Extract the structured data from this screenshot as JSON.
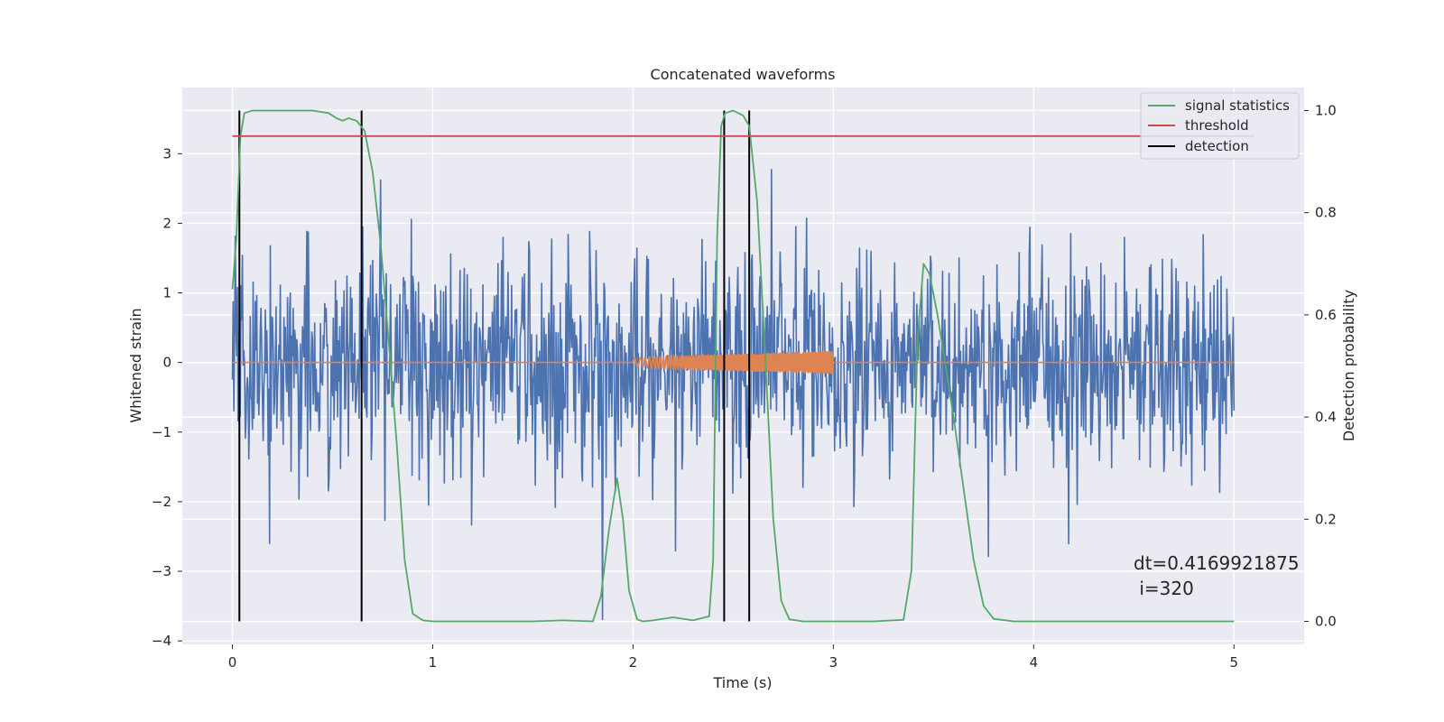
{
  "chart_data": {
    "type": "line",
    "title": "Concatenated waveforms",
    "xlabel": "Time (s)",
    "ylabel": "Whitened strain",
    "ylabel_right": "Detection probability",
    "xlim": [
      -0.25,
      5.35
    ],
    "ylim": [
      -4.05,
      3.95
    ],
    "ylim_right": [
      -0.045,
      1.045
    ],
    "x_ticks": [
      0,
      1,
      2,
      3,
      4,
      5
    ],
    "y_ticks": [
      -4,
      -3,
      -2,
      -1,
      0,
      1,
      2,
      3
    ],
    "y_ticks_right": [
      0.0,
      0.2,
      0.4,
      0.6,
      0.8,
      1.0
    ],
    "y_ticks_right_labels": [
      "0.0",
      "0.2",
      "0.4",
      "0.6",
      "0.8",
      "1.0"
    ],
    "grid": true,
    "legend_position": "top-right",
    "noise": {
      "color": "#4c72b0",
      "x_range": [
        0,
        5
      ],
      "samples": 1400,
      "sigma": 0.8,
      "seed": 7
    },
    "template": {
      "color": "#dd8452",
      "x_range": [
        2,
        3
      ],
      "amplitude_start": 0.07,
      "amplitude_end": 0.17
    },
    "series": [
      {
        "name": "signal statistics",
        "color": "#55a868",
        "axis": "right",
        "x": [
          0.0,
          0.02,
          0.04,
          0.06,
          0.1,
          0.2,
          0.3,
          0.4,
          0.48,
          0.52,
          0.55,
          0.58,
          0.62,
          0.66,
          0.7,
          0.74,
          0.78,
          0.82,
          0.86,
          0.9,
          0.95,
          1.0,
          1.2,
          1.5,
          1.65,
          1.8,
          1.84,
          1.88,
          1.92,
          1.95,
          1.98,
          2.02,
          2.05,
          2.1,
          2.2,
          2.3,
          2.38,
          2.4,
          2.42,
          2.44,
          2.46,
          2.5,
          2.55,
          2.58,
          2.62,
          2.66,
          2.7,
          2.74,
          2.78,
          2.85,
          3.0,
          3.2,
          3.35,
          3.39,
          3.42,
          3.45,
          3.48,
          3.52,
          3.56,
          3.6,
          3.65,
          3.7,
          3.75,
          3.8,
          3.9,
          4.0,
          4.5,
          5.0
        ],
        "y": [
          0.65,
          0.75,
          0.95,
          0.995,
          1.0,
          1.0,
          1.0,
          1.0,
          0.995,
          0.985,
          0.98,
          0.985,
          0.98,
          0.96,
          0.88,
          0.74,
          0.55,
          0.35,
          0.12,
          0.015,
          0.002,
          0.0,
          0.0,
          0.0,
          0.002,
          0.0,
          0.05,
          0.18,
          0.28,
          0.2,
          0.06,
          0.004,
          0.0,
          0.002,
          0.008,
          0.002,
          0.01,
          0.12,
          0.75,
          0.97,
          0.995,
          1.0,
          0.99,
          0.97,
          0.82,
          0.52,
          0.2,
          0.04,
          0.004,
          0.0,
          0.0,
          0.0,
          0.003,
          0.1,
          0.55,
          0.7,
          0.68,
          0.6,
          0.5,
          0.4,
          0.26,
          0.12,
          0.03,
          0.005,
          0.0,
          0.0,
          0.0,
          0.0
        ]
      },
      {
        "name": "threshold",
        "color": "#c44e52",
        "axis": "right",
        "x": [
          0,
          5.1
        ],
        "y": [
          0.95,
          0.95
        ]
      }
    ],
    "detections": {
      "name": "detection",
      "color": "#000000",
      "x": [
        0.035,
        0.645,
        2.455,
        2.58
      ],
      "y_range_right": [
        0.0,
        1.0
      ]
    },
    "annotation": {
      "line1": "dt=0.4169921875",
      "line2": " i=320",
      "x": 4.5,
      "y": -3.0
    }
  }
}
